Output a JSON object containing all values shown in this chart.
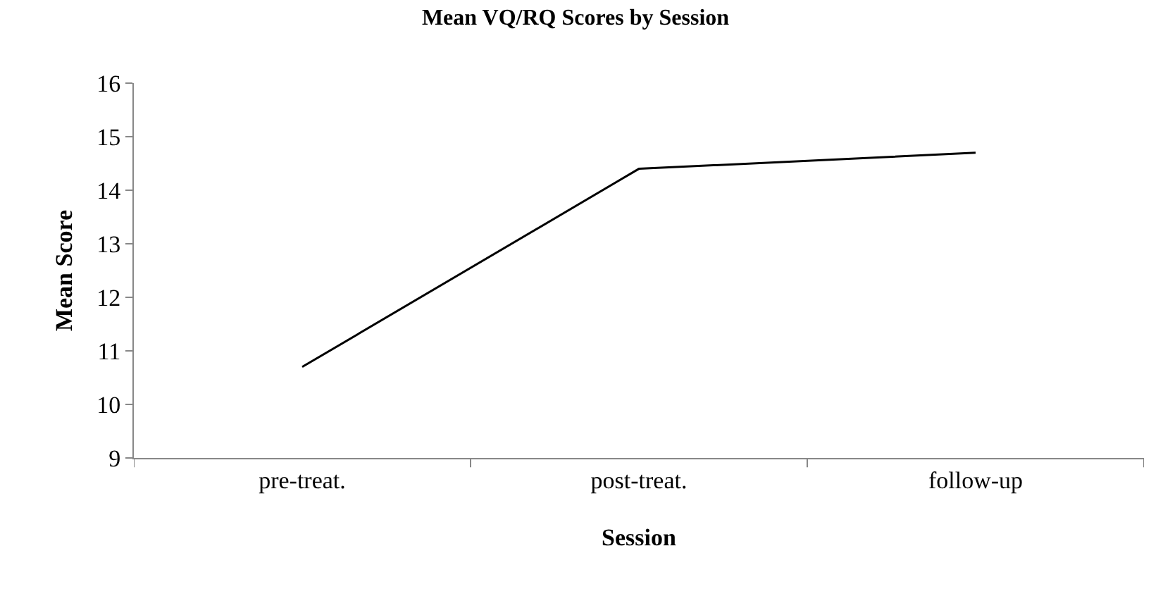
{
  "chart_data": {
    "type": "line",
    "title": "Mean VQ/RQ Scores by Session",
    "xlabel": "Session",
    "ylabel": "Mean Score",
    "categories": [
      "pre-treat.",
      "post-treat.",
      "follow-up"
    ],
    "series": [
      {
        "color": "#000000",
        "values": [
          10.7,
          14.4,
          14.7
        ]
      }
    ],
    "ylim": [
      9,
      16
    ],
    "yticks": [
      9,
      10,
      11,
      12,
      13,
      14,
      15,
      16
    ],
    "grid": false,
    "marker": "none",
    "line_style": "solid"
  }
}
